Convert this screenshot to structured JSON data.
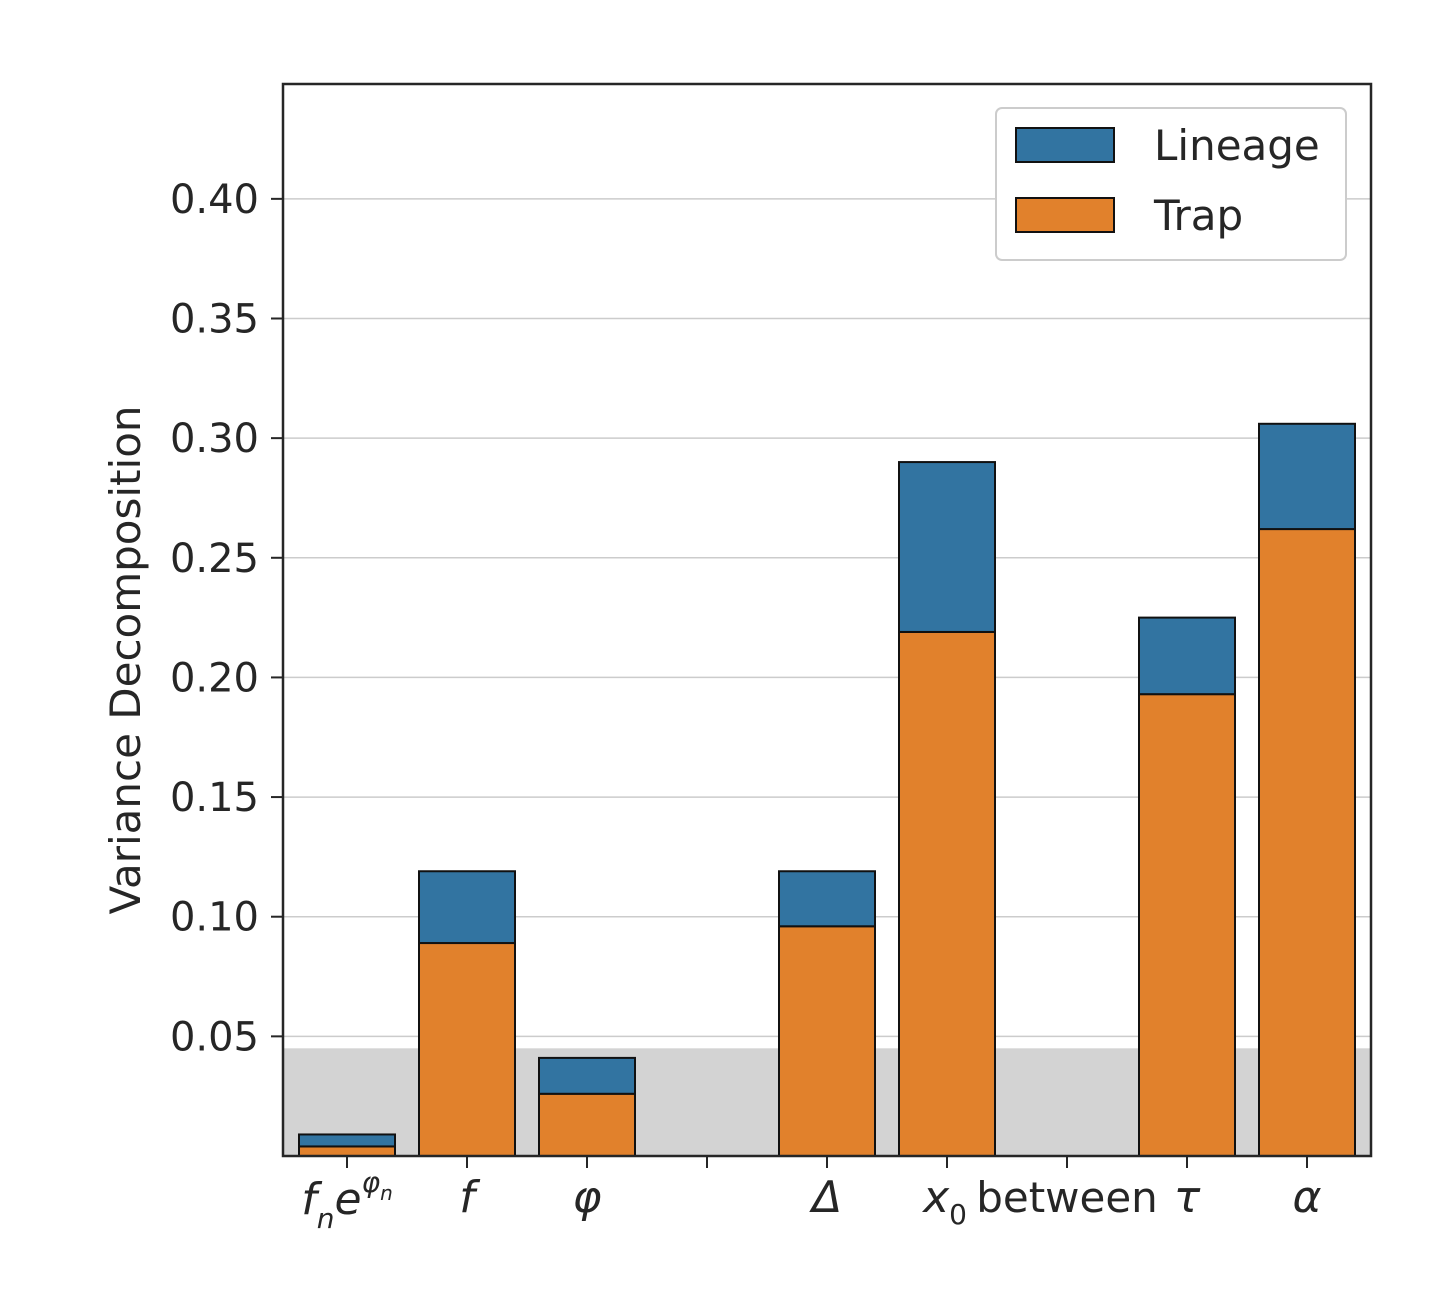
{
  "chart_data": {
    "type": "bar",
    "stacked": true,
    "categories": [
      "fₙe^φₙ",
      "f",
      "φ",
      "",
      "Δ",
      "x₀",
      "between",
      "τ",
      "α"
    ],
    "series": [
      {
        "name": "Trap",
        "color": "#e1812c",
        "values": [
          0.004,
          0.089,
          0.026,
          null,
          0.096,
          0.219,
          null,
          0.193,
          0.262
        ]
      },
      {
        "name": "Lineage",
        "color": "#3274a1",
        "values": [
          0.005,
          0.03,
          0.015,
          null,
          0.023,
          0.071,
          null,
          0.032,
          0.044
        ]
      }
    ],
    "xlabel": "",
    "ylabel": "Variance Decomposition",
    "ylim": [
      0,
      0.448
    ],
    "yticks": [
      "0.05",
      "0.10",
      "0.15",
      "0.20",
      "0.25",
      "0.30",
      "0.35",
      "0.40"
    ],
    "grid": "horizontal",
    "shaded_band": {
      "from": 0,
      "to": 0.045,
      "color": "#d3d3d3"
    },
    "legend": {
      "placement": "top-right",
      "entries": [
        "Lineage",
        "Trap"
      ]
    }
  }
}
